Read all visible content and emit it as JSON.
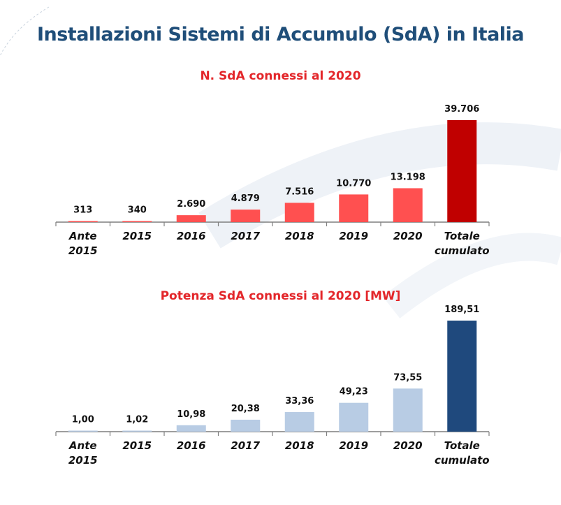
{
  "header": {
    "title": "Installazioni Sistemi di Accumulo (SdA)  in Italia"
  },
  "chart_data": [
    {
      "type": "bar",
      "title": "N. SdA connessi al 2020",
      "categories": [
        "Ante 2015",
        "2015",
        "2016",
        "2017",
        "2018",
        "2019",
        "2020",
        "Totale cumulato"
      ],
      "values": [
        313,
        340,
        2690,
        4879,
        7516,
        10770,
        13198,
        39706
      ],
      "value_labels": [
        "313",
        "340",
        "2.690",
        "4.879",
        "7.516",
        "10.770",
        "13.198",
        "39.706"
      ],
      "colors": [
        "#ff5050",
        "#ff5050",
        "#ff5050",
        "#ff5050",
        "#ff5050",
        "#ff5050",
        "#ff5050",
        "#c00000"
      ],
      "ylim": [
        0,
        39706
      ],
      "grid": false,
      "legend": "none"
    },
    {
      "type": "bar",
      "title": "Potenza SdA connessi al 2020 [MW]",
      "categories": [
        "Ante 2015",
        "2015",
        "2016",
        "2017",
        "2018",
        "2019",
        "2020",
        "Totale cumulato"
      ],
      "values": [
        1.0,
        1.02,
        10.98,
        20.38,
        33.36,
        49.23,
        73.55,
        189.51
      ],
      "value_labels": [
        "1,00",
        "1,02",
        "10,98",
        "20,38",
        "33,36",
        "49,23",
        "73,55",
        "189,51"
      ],
      "colors": [
        "#b8cce4",
        "#b8cce4",
        "#b8cce4",
        "#b8cce4",
        "#b8cce4",
        "#b8cce4",
        "#b8cce4",
        "#1f497d"
      ],
      "ylim": [
        0,
        189.51
      ],
      "grid": false,
      "legend": "none"
    }
  ]
}
